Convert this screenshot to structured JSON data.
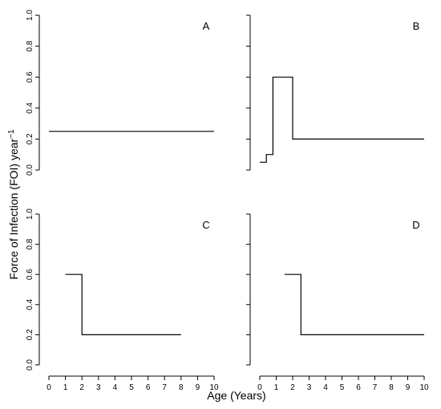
{
  "chart_data": {
    "type": "line",
    "xlabel": "Age (Years)",
    "ylabel": {
      "base": "Force of Infection (FOI) year",
      "sup": "−1"
    },
    "ylim": [
      0,
      1
    ],
    "yticks": [
      "0.0",
      "0.2",
      "0.4",
      "0.6",
      "0.8",
      "1.0"
    ],
    "grid": false,
    "panels": [
      {
        "label": "A",
        "xlim": [
          0,
          10
        ],
        "xticks": [],
        "show_y_labels": true,
        "steps": [
          [
            0,
            0.25
          ],
          [
            10,
            0.25
          ]
        ]
      },
      {
        "label": "B",
        "xlim": [
          0,
          10
        ],
        "xticks": [],
        "show_y_labels": false,
        "steps": [
          [
            0,
            0.05
          ],
          [
            0.4,
            0.05
          ],
          [
            0.4,
            0.1
          ],
          [
            0.8,
            0.1
          ],
          [
            0.8,
            0.6
          ],
          [
            2,
            0.6
          ],
          [
            2,
            0.2
          ],
          [
            10,
            0.2
          ]
        ]
      },
      {
        "label": "C",
        "xlim": [
          0,
          10
        ],
        "xticks": [
          "0",
          "1",
          "2",
          "3",
          "4",
          "5",
          "6",
          "7",
          "8",
          "9",
          "10"
        ],
        "show_y_labels": true,
        "steps": [
          [
            1,
            0.6
          ],
          [
            2,
            0.6
          ],
          [
            2,
            0.2
          ],
          [
            8,
            0.2
          ]
        ]
      },
      {
        "label": "D",
        "xlim": [
          0,
          10
        ],
        "xticks": [
          "0",
          "1",
          "2",
          "3",
          "4",
          "5",
          "6",
          "7",
          "8",
          "9",
          "10"
        ],
        "show_y_labels": false,
        "steps": [
          [
            1.5,
            0.6
          ],
          [
            2.5,
            0.6
          ],
          [
            2.5,
            0.2
          ],
          [
            10,
            0.2
          ]
        ]
      }
    ]
  }
}
